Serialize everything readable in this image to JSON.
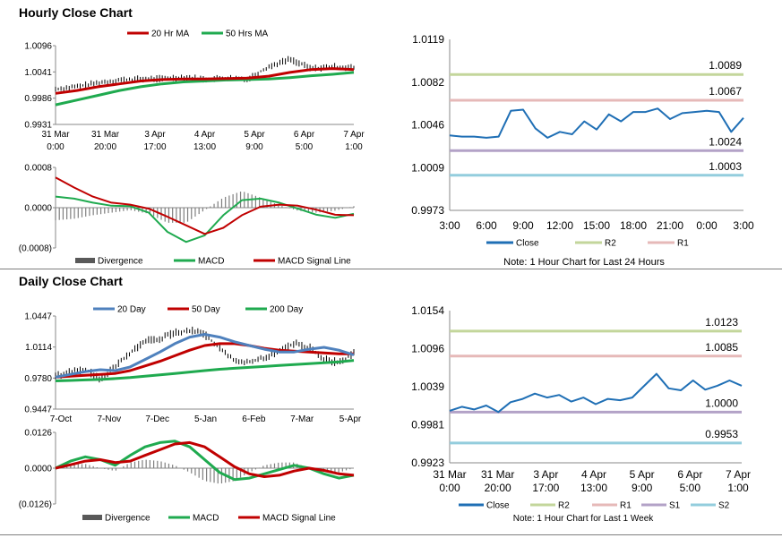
{
  "sections": {
    "hourly_title": "Hourly Close Chart",
    "daily_title": "Daily Close Chart"
  },
  "colors": {
    "red": "#c00000",
    "green": "#1faa4f",
    "blue": "#1f6fb5",
    "steel_blue": "#4f81bd",
    "r2": "#c3d69b",
    "r1": "#e6b9b8",
    "s1": "#b3a2c7",
    "s2": "#93cddd",
    "divergence": "#595959"
  },
  "chart_data": [
    {
      "id": "hourly_price",
      "type": "line",
      "legend": [
        "20 Hr MA",
        "50 Hrs MA"
      ],
      "yticks": [
        "1.0096",
        "1.0041",
        "0.9986",
        "0.9931"
      ],
      "ylim": [
        0.9931,
        1.0096
      ],
      "xticks": [
        [
          "31 Mar",
          "0:00"
        ],
        [
          "31 Mar",
          "20:00"
        ],
        [
          "3 Apr",
          "17:00"
        ],
        [
          "4 Apr",
          "13:00"
        ],
        [
          "5 Apr",
          "9:00"
        ],
        [
          "6 Apr",
          "5:00"
        ],
        [
          "7 Apr",
          "1:00"
        ]
      ],
      "series": [
        {
          "name": "20 Hr MA",
          "values": [
            0.9996,
            1.0002,
            1.001,
            1.0016,
            1.0022,
            1.0025,
            1.0026,
            1.0026,
            1.0027,
            1.0028,
            1.0032,
            1.004,
            1.0046,
            1.0048,
            1.0046
          ]
        },
        {
          "name": "50 Hrs MA",
          "values": [
            0.9972,
            0.9982,
            0.9992,
            1.0002,
            1.001,
            1.0016,
            1.002,
            1.0022,
            1.0024,
            1.0025,
            1.0026,
            1.0029,
            1.0033,
            1.0036,
            1.004
          ]
        },
        {
          "name": "price",
          "values": [
            1.0005,
            1.001,
            1.0018,
            1.0024,
            1.0026,
            1.0027,
            1.003,
            1.0026,
            1.0028,
            1.0026,
            1.0052,
            1.0068,
            1.0048,
            1.0052,
            1.005
          ]
        }
      ]
    },
    {
      "id": "hourly_macd",
      "type": "line",
      "legend": [
        "Divergence",
        "MACD",
        "MACD Signal Line"
      ],
      "yticks": [
        "0.0008",
        "0.0000",
        "(0.0008)"
      ],
      "ylim": [
        -0.0008,
        0.0008
      ],
      "series": [
        {
          "name": "MACD",
          "values": [
            0.00022,
            0.00018,
            0.0001,
            4e-05,
            3e-05,
            -0.0001,
            -0.00048,
            -0.00068,
            -0.00055,
            -0.00015,
            0.00015,
            0.00018,
            0.0001,
            -2e-05,
            -0.00014,
            -0.0002,
            -0.00012
          ]
        },
        {
          "name": "MACD Signal Line",
          "values": [
            0.0006,
            0.0004,
            0.00022,
            0.0001,
            6e-05,
            -2e-05,
            -0.00018,
            -0.00035,
            -0.00052,
            -0.0004,
            -0.00015,
            2e-05,
            6e-05,
            4e-05,
            -4e-05,
            -0.00014,
            -0.00015
          ]
        },
        {
          "name": "Divergence",
          "values": [
            -0.00025,
            -0.00022,
            -0.00015,
            -0.0001,
            -5e-05,
            -0.00012,
            -0.0003,
            -0.0003,
            -5e-05,
            0.0002,
            0.00033,
            0.0002,
            5e-05,
            -6e-05,
            -0.0001,
            -6e-05,
            3e-05
          ]
        }
      ]
    },
    {
      "id": "hourly_levels",
      "type": "line",
      "yticks": [
        "1.0119",
        "1.0082",
        "1.0046",
        "1.0009",
        "0.9973"
      ],
      "ylim": [
        0.9973,
        1.0119
      ],
      "xticks": [
        "3:00",
        "6:00",
        "9:00",
        "12:00",
        "15:00",
        "18:00",
        "21:00",
        "0:00",
        "3:00"
      ],
      "levels": [
        {
          "name": "R2",
          "value": 1.0089,
          "label": "1.0089"
        },
        {
          "name": "R1",
          "value": 1.0067,
          "label": "1.0067"
        },
        {
          "name": "S1",
          "value": 1.0024,
          "label": "1.0024"
        },
        {
          "name": "S2",
          "value": 1.0003,
          "label": "1.0003"
        }
      ],
      "series": [
        {
          "name": "Close",
          "values": [
            1.0037,
            1.0036,
            1.0036,
            1.0035,
            1.0036,
            1.0058,
            1.0059,
            1.0043,
            1.0035,
            1.004,
            1.0038,
            1.0049,
            1.0042,
            1.0055,
            1.0049,
            1.0057,
            1.0057,
            1.006,
            1.0051,
            1.0056,
            1.0057,
            1.0058,
            1.0057,
            1.004,
            1.0052
          ]
        }
      ],
      "legend": [
        "Close",
        "R2",
        "R1"
      ],
      "note": "Note: 1 Hour Chart for Last 24 Hours"
    },
    {
      "id": "daily_price",
      "type": "line",
      "legend": [
        "20 Day",
        "50 Day",
        "200 Day"
      ],
      "yticks": [
        "1.0447",
        "1.0114",
        "0.9780",
        "0.9447"
      ],
      "ylim": [
        0.9447,
        1.0447
      ],
      "xticks": [
        "7-Oct",
        "7-Nov",
        "7-Dec",
        "5-Jan",
        "6-Feb",
        "7-Mar",
        "5-Apr"
      ],
      "series": [
        {
          "name": "20 Day",
          "values": [
            0.979,
            0.982,
            0.985,
            0.987,
            0.986,
            0.99,
            0.998,
            1.006,
            1.015,
            1.022,
            1.025,
            1.022,
            1.017,
            1.013,
            1.009,
            1.006,
            1.006,
            1.009,
            1.011,
            1.008,
            1.003
          ]
        },
        {
          "name": "50 Day",
          "values": [
            0.979,
            0.98,
            0.981,
            0.982,
            0.983,
            0.986,
            0.991,
            0.996,
            1.002,
            1.008,
            1.013,
            1.015,
            1.015,
            1.013,
            1.01,
            1.008,
            1.007,
            1.006,
            1.005,
            1.004,
            1.004
          ]
        },
        {
          "name": "200 Day",
          "values": [
            0.975,
            0.9755,
            0.976,
            0.9765,
            0.9775,
            0.9785,
            0.98,
            0.9815,
            0.983,
            0.9845,
            0.986,
            0.9875,
            0.9885,
            0.9895,
            0.9905,
            0.9915,
            0.9925,
            0.9935,
            0.9945,
            0.9955,
            0.997
          ]
        },
        {
          "name": "price",
          "values": [
            0.98,
            0.985,
            0.988,
            0.976,
            0.99,
            1.005,
            1.018,
            1.02,
            1.027,
            1.029,
            1.025,
            1.01,
            0.997,
            0.995,
            1.0,
            1.006,
            1.015,
            1.011,
            0.999,
            0.994,
            1.005
          ]
        }
      ]
    },
    {
      "id": "daily_macd",
      "type": "line",
      "legend": [
        "Divergence",
        "MACD",
        "MACD Signal Line"
      ],
      "yticks": [
        "0.0126",
        "0.0000",
        "(0.0126)"
      ],
      "ylim": [
        -0.0126,
        0.0126
      ],
      "series": [
        {
          "name": "MACD",
          "values": [
            0.0,
            0.0025,
            0.004,
            0.003,
            0.001,
            0.0045,
            0.0075,
            0.009,
            0.0095,
            0.0075,
            0.003,
            -0.0015,
            -0.004,
            -0.0035,
            -0.002,
            -0.0005,
            0.001,
            0.0,
            -0.002,
            -0.0035,
            -0.0025
          ]
        },
        {
          "name": "MACD Signal Line",
          "values": [
            0.0,
            0.0012,
            0.0025,
            0.003,
            0.002,
            0.0025,
            0.0045,
            0.0065,
            0.0085,
            0.009,
            0.0075,
            0.004,
            0.0005,
            -0.002,
            -0.003,
            -0.0025,
            -0.001,
            0.0,
            -0.0008,
            -0.002,
            -0.0025
          ]
        },
        {
          "name": "Divergence",
          "values": [
            0.0,
            0.0013,
            0.0015,
            0.0,
            -0.001,
            0.002,
            0.003,
            0.0025,
            0.001,
            -0.0015,
            -0.0045,
            -0.0055,
            -0.0045,
            -0.0015,
            0.001,
            0.002,
            0.002,
            0.0,
            -0.0012,
            -0.0015,
            0.0
          ]
        }
      ]
    },
    {
      "id": "daily_levels",
      "type": "line",
      "yticks": [
        "1.0154",
        "1.0096",
        "1.0039",
        "0.9981",
        "0.9923"
      ],
      "ylim": [
        0.9923,
        1.0154
      ],
      "xticks": [
        [
          "31 Mar",
          "0:00"
        ],
        [
          "31 Mar",
          "20:00"
        ],
        [
          "3 Apr",
          "17:00"
        ],
        [
          "4 Apr",
          "13:00"
        ],
        [
          "5 Apr",
          "9:00"
        ],
        [
          "6 Apr",
          "5:00"
        ],
        [
          "7 Apr",
          "1:00"
        ]
      ],
      "levels": [
        {
          "name": "R2",
          "value": 1.0123,
          "label": "1.0123"
        },
        {
          "name": "R1",
          "value": 1.0085,
          "label": "1.0085"
        },
        {
          "name": "S1",
          "value": 1.0,
          "label": "1.0000"
        },
        {
          "name": "S2",
          "value": 0.9953,
          "label": "0.9953"
        }
      ],
      "series": [
        {
          "name": "Close",
          "values": [
            1.0002,
            1.0008,
            1.0004,
            1.001,
            1.0,
            1.0015,
            1.002,
            1.0028,
            1.0022,
            1.0026,
            1.0016,
            1.0022,
            1.0012,
            1.002,
            1.0018,
            1.0022,
            1.004,
            1.0058,
            1.0036,
            1.0033,
            1.0048,
            1.0034,
            1.004,
            1.0048,
            1.004
          ]
        }
      ],
      "legend": [
        "Close",
        "R2",
        "R1",
        "S1",
        "S2"
      ],
      "note": "Note: 1 Hour Chart for Last 1 Week"
    }
  ]
}
